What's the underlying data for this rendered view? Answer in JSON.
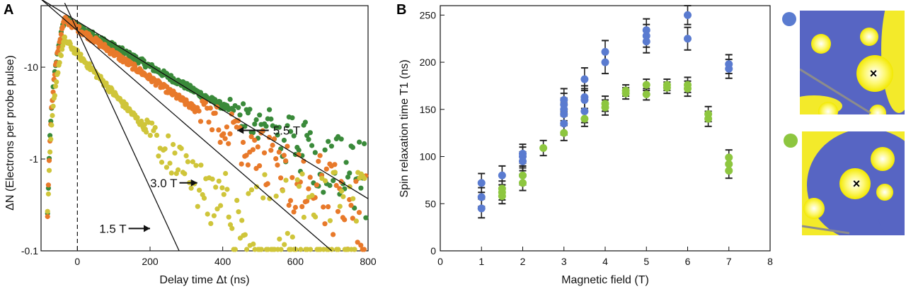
{
  "chart_data": [
    {
      "panel": "A",
      "type": "scatter",
      "xlabel": "Delay time Δt (ns)",
      "ylabel": "ΔN (Electrons per probe pulse)",
      "xlim": [
        -100,
        800
      ],
      "ylim_log10": [
        -1,
        1.67
      ],
      "y_scale": "log",
      "xticks": [
        0,
        200,
        400,
        600,
        800
      ],
      "yticks": [
        {
          "value": 10,
          "label": "-10"
        },
        {
          "value": 1,
          "label": "-1"
        },
        {
          "value": 0.1,
          "label": "-0.1"
        }
      ],
      "zero_line_x": 0,
      "series": [
        {
          "name": "5.5 T",
          "color": "#3a8a3a",
          "tau": 200,
          "A": 33,
          "x_end": 800,
          "noise_from": 420
        },
        {
          "name": "3.0 T",
          "color": "#e8792a",
          "tau": 160,
          "A": 33,
          "x_end": 800,
          "noise_from": 330
        },
        {
          "name": "1.5 T",
          "color": "#cfc53a",
          "tau": 100,
          "A": 20,
          "x_end": 800,
          "noise_from": 190
        }
      ],
      "fit_lines": [
        {
          "name": "5.5 T fit",
          "x": [
            -100,
            800
          ],
          "y": [
            55,
            0.37
          ]
        },
        {
          "name": "3.0 T fit",
          "x": [
            -100,
            700
          ],
          "y": [
            55,
            0.1
          ]
        },
        {
          "name": "1.5 T fit",
          "x": [
            -35,
            280
          ],
          "y": [
            50,
            0.1
          ]
        }
      ],
      "annotations": [
        {
          "text": "5.5 T",
          "x": 515,
          "y": 2.05,
          "arrow_to": [
            440,
            2.05
          ]
        },
        {
          "text": "3.0 T",
          "x": 275,
          "y": 0.55,
          "arrow_to": [
            330,
            0.55
          ]
        },
        {
          "text": "1.5 T",
          "x": 135,
          "y": 0.175,
          "arrow_to": [
            200,
            0.175
          ]
        }
      ]
    },
    {
      "panel": "B",
      "type": "scatter",
      "xlabel": "Magnetic field (T)",
      "ylabel": "Spin relaxation time T1 (ns)",
      "xlim": [
        0,
        8
      ],
      "ylim": [
        0,
        260
      ],
      "xticks": [
        0,
        1,
        2,
        3,
        4,
        5,
        6,
        7,
        8
      ],
      "yticks": [
        0,
        50,
        100,
        150,
        200,
        250
      ],
      "series": [
        {
          "name": "blue dot",
          "color": "#5a7bd0",
          "points": [
            {
              "x": 1,
              "y": 45,
              "err": 10
            },
            {
              "x": 1,
              "y": 57,
              "err": 10
            },
            {
              "x": 1,
              "y": 72,
              "err": 10
            },
            {
              "x": 1.5,
              "y": 80,
              "err": 10
            },
            {
              "x": 2,
              "y": 80,
              "err": 10
            },
            {
              "x": 2,
              "y": 95,
              "err": 10
            },
            {
              "x": 2,
              "y": 100,
              "err": 10
            },
            {
              "x": 2,
              "y": 103,
              "err": 10
            },
            {
              "x": 3,
              "y": 135,
              "err": 12
            },
            {
              "x": 3,
              "y": 145,
              "err": 12
            },
            {
              "x": 3,
              "y": 150,
              "err": 12
            },
            {
              "x": 3,
              "y": 155,
              "err": 12
            },
            {
              "x": 3,
              "y": 160,
              "err": 12
            },
            {
              "x": 3.5,
              "y": 148,
              "err": 12
            },
            {
              "x": 3.5,
              "y": 160,
              "err": 12
            },
            {
              "x": 3.5,
              "y": 163,
              "err": 12
            },
            {
              "x": 3.5,
              "y": 182,
              "err": 12
            },
            {
              "x": 4,
              "y": 200,
              "err": 12
            },
            {
              "x": 4,
              "y": 211,
              "err": 12
            },
            {
              "x": 5,
              "y": 222,
              "err": 12
            },
            {
              "x": 5,
              "y": 228,
              "err": 12
            },
            {
              "x": 5,
              "y": 234,
              "err": 12
            },
            {
              "x": 6,
              "y": 225,
              "err": 12
            },
            {
              "x": 6,
              "y": 250,
              "err": 10
            },
            {
              "x": 7,
              "y": 193,
              "err": 10
            },
            {
              "x": 7,
              "y": 198,
              "err": 10
            }
          ]
        },
        {
          "name": "green dot",
          "color": "#8dc63f",
          "points": [
            {
              "x": 1.5,
              "y": 58,
              "err": 8
            },
            {
              "x": 1.5,
              "y": 62,
              "err": 8
            },
            {
              "x": 1.5,
              "y": 66,
              "err": 8
            },
            {
              "x": 2,
              "y": 72,
              "err": 8
            },
            {
              "x": 2,
              "y": 80,
              "err": 8
            },
            {
              "x": 2.5,
              "y": 109,
              "err": 8
            },
            {
              "x": 3,
              "y": 125,
              "err": 8
            },
            {
              "x": 3.5,
              "y": 140,
              "err": 8
            },
            {
              "x": 4,
              "y": 152,
              "err": 8
            },
            {
              "x": 4,
              "y": 156,
              "err": 8
            },
            {
              "x": 4.5,
              "y": 167,
              "err": 6
            },
            {
              "x": 4.5,
              "y": 170,
              "err": 6
            },
            {
              "x": 5,
              "y": 166,
              "err": 6
            },
            {
              "x": 5,
              "y": 176,
              "err": 6
            },
            {
              "x": 5.5,
              "y": 173,
              "err": 6
            },
            {
              "x": 5.5,
              "y": 176,
              "err": 6
            },
            {
              "x": 6,
              "y": 172,
              "err": 8
            },
            {
              "x": 6,
              "y": 176,
              "err": 8
            },
            {
              "x": 6.5,
              "y": 140,
              "err": 8
            },
            {
              "x": 6.5,
              "y": 145,
              "err": 8
            },
            {
              "x": 7,
              "y": 85,
              "err": 8
            },
            {
              "x": 7,
              "y": 92,
              "err": 8
            },
            {
              "x": 7,
              "y": 99,
              "err": 8
            }
          ]
        }
      ]
    }
  ],
  "panels": {
    "a": "A",
    "b": "B"
  },
  "tick_text": {
    "a_x": [
      "0",
      "200",
      "400",
      "600",
      "800"
    ],
    "a_y": [
      "-10",
      "-1",
      "-0.1"
    ],
    "b_x": [
      "0",
      "1",
      "2",
      "3",
      "4",
      "5",
      "6",
      "7",
      "8"
    ],
    "b_y": [
      "0",
      "50",
      "100",
      "150",
      "200",
      "250"
    ]
  },
  "axis_titles": {
    "a_x": "Delay time Δt (ns)",
    "a_y": "ΔN (Electrons per probe pulse)",
    "b_x": "Magnetic field (T)",
    "b_y": "Spin relaxation time T1 (ns)"
  },
  "legend_images": [
    {
      "marker_color": "#5a7bd0",
      "mark": "×"
    },
    {
      "marker_color": "#8dc63f",
      "mark": "×"
    }
  ]
}
